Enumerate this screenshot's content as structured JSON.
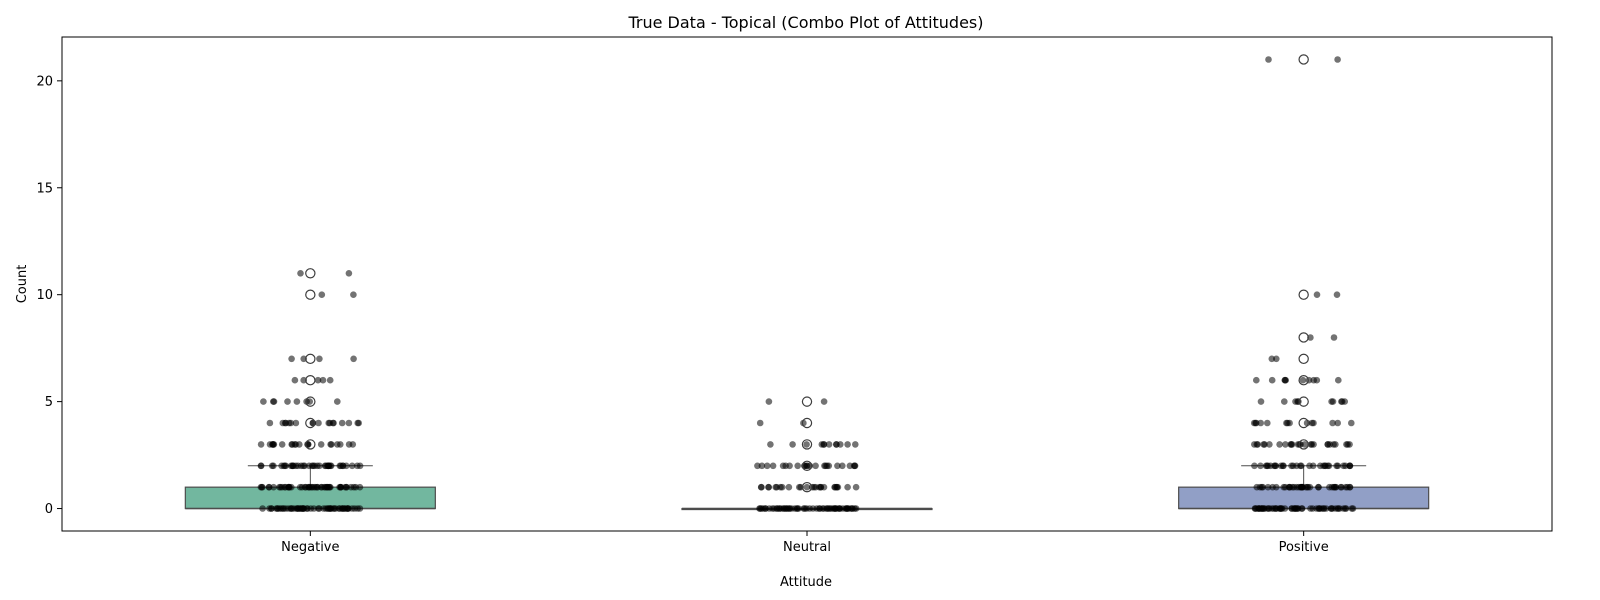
{
  "chart_data": {
    "type": "box",
    "title": "True Data - Topical (Combo Plot of Attitudes)",
    "xlabel": "Attitude",
    "ylabel": "Count",
    "ylim": [
      -1.05,
      22.05
    ],
    "yticks": [
      0,
      5,
      10,
      15,
      20
    ],
    "categories": [
      "Negative",
      "Neutral",
      "Positive"
    ],
    "box_colors": [
      "#72b79f",
      "#7f7f7f",
      "#919fc6"
    ],
    "boxes": [
      {
        "category": "Negative",
        "q1": 0,
        "median": 0,
        "q3": 1,
        "whisker_low": 0,
        "whisker_high": 2,
        "outliers": [
          3,
          4,
          5,
          6,
          7,
          10,
          11
        ]
      },
      {
        "category": "Neutral",
        "q1": 0,
        "median": 0,
        "q3": 0,
        "whisker_low": 0,
        "whisker_high": 0,
        "outliers": [
          1,
          2,
          3,
          4,
          5
        ]
      },
      {
        "category": "Positive",
        "q1": 0,
        "median": 0,
        "q3": 1,
        "whisker_low": 0,
        "whisker_high": 2,
        "outliers": [
          3,
          4,
          5,
          6,
          7,
          8,
          10,
          21
        ]
      }
    ],
    "strip": [
      {
        "category": "Negative",
        "points": [
          [
            0,
            60
          ],
          [
            1,
            50
          ],
          [
            2,
            40
          ],
          [
            3,
            22
          ],
          [
            4,
            18
          ],
          [
            5,
            8
          ],
          [
            6,
            5
          ],
          [
            7,
            4
          ],
          [
            10,
            2
          ],
          [
            11,
            2
          ]
        ]
      },
      {
        "category": "Neutral",
        "points": [
          [
            0,
            60
          ],
          [
            1,
            26
          ],
          [
            2,
            24
          ],
          [
            3,
            12
          ],
          [
            4,
            2
          ],
          [
            5,
            2
          ]
        ]
      },
      {
        "category": "Positive",
        "points": [
          [
            0,
            60
          ],
          [
            1,
            40
          ],
          [
            2,
            32
          ],
          [
            3,
            26
          ],
          [
            4,
            14
          ],
          [
            5,
            10
          ],
          [
            6,
            10
          ],
          [
            7,
            2
          ],
          [
            8,
            2
          ],
          [
            10,
            2
          ],
          [
            21,
            2
          ]
        ]
      }
    ]
  }
}
